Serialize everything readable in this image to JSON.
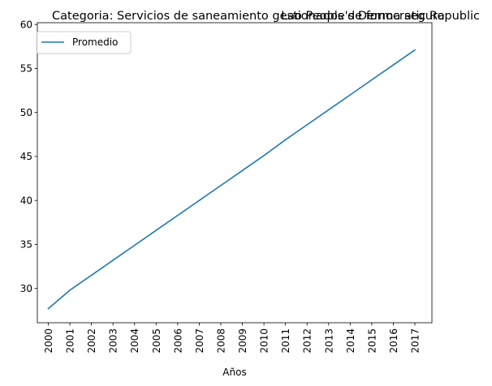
{
  "chart_data": {
    "type": "line",
    "title_left": "Categoria: Servicios de saneamiento gestionados de forma segura",
    "title_right": "Lao People's Democratic Republic",
    "xlabel": "Años",
    "ylabel": "",
    "x": [
      "2000",
      "2001",
      "2002",
      "2003",
      "2004",
      "2005",
      "2006",
      "2007",
      "2008",
      "2009",
      "2010",
      "2011",
      "2012",
      "2013",
      "2014",
      "2015",
      "2016",
      "2017"
    ],
    "series": [
      {
        "name": "Promedio",
        "color": "#1f77b4",
        "values": [
          27.7,
          29.8,
          31.5,
          33.2,
          34.9,
          36.6,
          38.3,
          40.0,
          41.7,
          43.4,
          45.1,
          46.9,
          48.6,
          50.3,
          52.0,
          53.7,
          55.4,
          57.1
        ]
      }
    ],
    "ylim": [
      26.1,
      60.2
    ],
    "yticks": [
      30,
      35,
      40,
      45,
      50,
      55,
      60
    ],
    "grid": false,
    "legend": "upper-left"
  }
}
